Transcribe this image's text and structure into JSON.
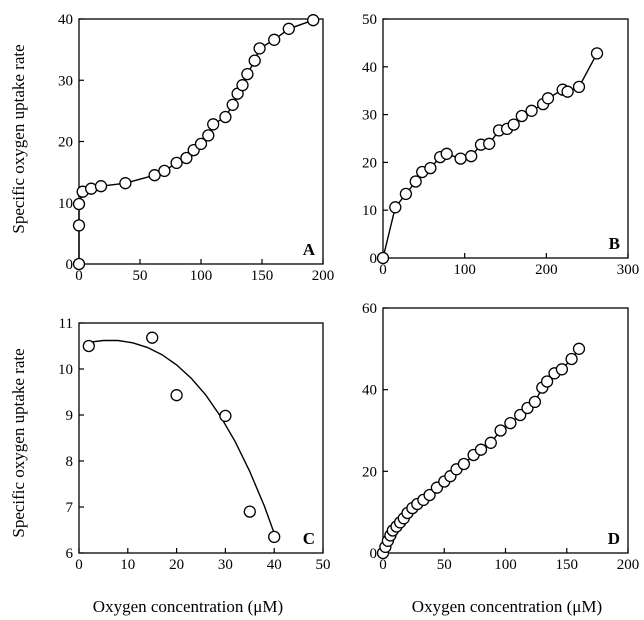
{
  "figure": {
    "y_label_top": "Specific oxygen uptake rate",
    "y_label_bottom": "Specific oxygen uptake rate",
    "x_label_left": "Oxygen concentration  (μM)",
    "x_label_right": "Oxygen concentration (μM)"
  },
  "chart_data": [
    {
      "id": "A",
      "type": "line",
      "panel_label": "A",
      "xlim": [
        0,
        200
      ],
      "ylim": [
        0,
        40
      ],
      "xticks": [
        0,
        50,
        100,
        150,
        200
      ],
      "yticks": [
        0,
        10,
        20,
        30,
        40
      ],
      "grid": false,
      "series": [
        {
          "x": [
            0,
            0,
            0,
            3,
            10,
            18,
            38,
            62,
            70,
            80,
            88,
            94,
            100,
            106,
            110,
            120,
            126,
            130,
            134,
            138,
            144,
            148,
            160,
            172,
            192
          ],
          "y": [
            0,
            6.3,
            9.8,
            11.8,
            12.3,
            12.7,
            13.2,
            14.5,
            15.2,
            16.5,
            17.3,
            18.6,
            19.6,
            21,
            22.8,
            24,
            26,
            27.8,
            29.2,
            31,
            33.2,
            35.2,
            36.6,
            38.4,
            39.8
          ]
        }
      ]
    },
    {
      "id": "B",
      "type": "line",
      "panel_label": "B",
      "xlim": [
        0,
        300
      ],
      "ylim": [
        0,
        50
      ],
      "xticks": [
        0,
        100,
        200,
        300
      ],
      "yticks": [
        0,
        10,
        20,
        30,
        40,
        50
      ],
      "grid": false,
      "series": [
        {
          "x": [
            0,
            15,
            28,
            40,
            48,
            58,
            70,
            78,
            95,
            108,
            120,
            130,
            142,
            152,
            160,
            170,
            182,
            196,
            202,
            220,
            226,
            240,
            262
          ],
          "y": [
            0,
            10.6,
            13.4,
            16,
            18,
            18.8,
            21.1,
            21.8,
            20.8,
            21.3,
            23.7,
            23.9,
            26.7,
            27,
            27.9,
            29.7,
            30.8,
            32.2,
            33.4,
            35.2,
            34.8,
            35.8,
            42.8
          ]
        }
      ]
    },
    {
      "id": "C",
      "type": "scatter",
      "panel_label": "C",
      "xlim": [
        0,
        50
      ],
      "ylim": [
        6,
        11
      ],
      "xticks": [
        0,
        10,
        20,
        30,
        40,
        50
      ],
      "yticks": [
        6,
        7,
        8,
        9,
        10,
        11
      ],
      "grid": false,
      "series": [
        {
          "x": [
            2,
            15,
            20,
            30,
            35,
            40
          ],
          "y": [
            10.5,
            10.68,
            9.43,
            8.98,
            6.9,
            6.35
          ]
        }
      ],
      "fit_curve": {
        "x": [
          2,
          5,
          8,
          11,
          14,
          17,
          20,
          23,
          26,
          29,
          32,
          35,
          38,
          40
        ],
        "y": [
          10.58,
          10.62,
          10.62,
          10.57,
          10.47,
          10.31,
          10.09,
          9.8,
          9.43,
          8.97,
          8.42,
          7.77,
          7.02,
          6.43
        ]
      }
    },
    {
      "id": "D",
      "type": "line",
      "panel_label": "D",
      "xlim": [
        0,
        200
      ],
      "ylim": [
        0,
        60
      ],
      "xticks": [
        0,
        50,
        100,
        150,
        200
      ],
      "yticks": [
        0,
        20,
        40,
        60
      ],
      "grid": false,
      "series": [
        {
          "x": [
            0,
            2,
            4,
            6,
            8,
            11,
            14,
            17,
            20,
            24,
            28,
            33,
            38,
            44,
            50,
            55,
            60,
            66,
            74,
            80,
            88,
            96,
            104,
            112,
            118,
            124,
            130,
            134,
            140,
            146,
            154,
            160
          ],
          "y": [
            0,
            1.5,
            3,
            4.3,
            5.5,
            6.5,
            7.5,
            8.5,
            9.8,
            11,
            12,
            13,
            14.2,
            16,
            17.5,
            18.8,
            20.5,
            21.8,
            24,
            25.3,
            27,
            30,
            31.8,
            33.8,
            35.5,
            37,
            40.5,
            42,
            44,
            45,
            47.5,
            50
          ]
        }
      ]
    }
  ]
}
